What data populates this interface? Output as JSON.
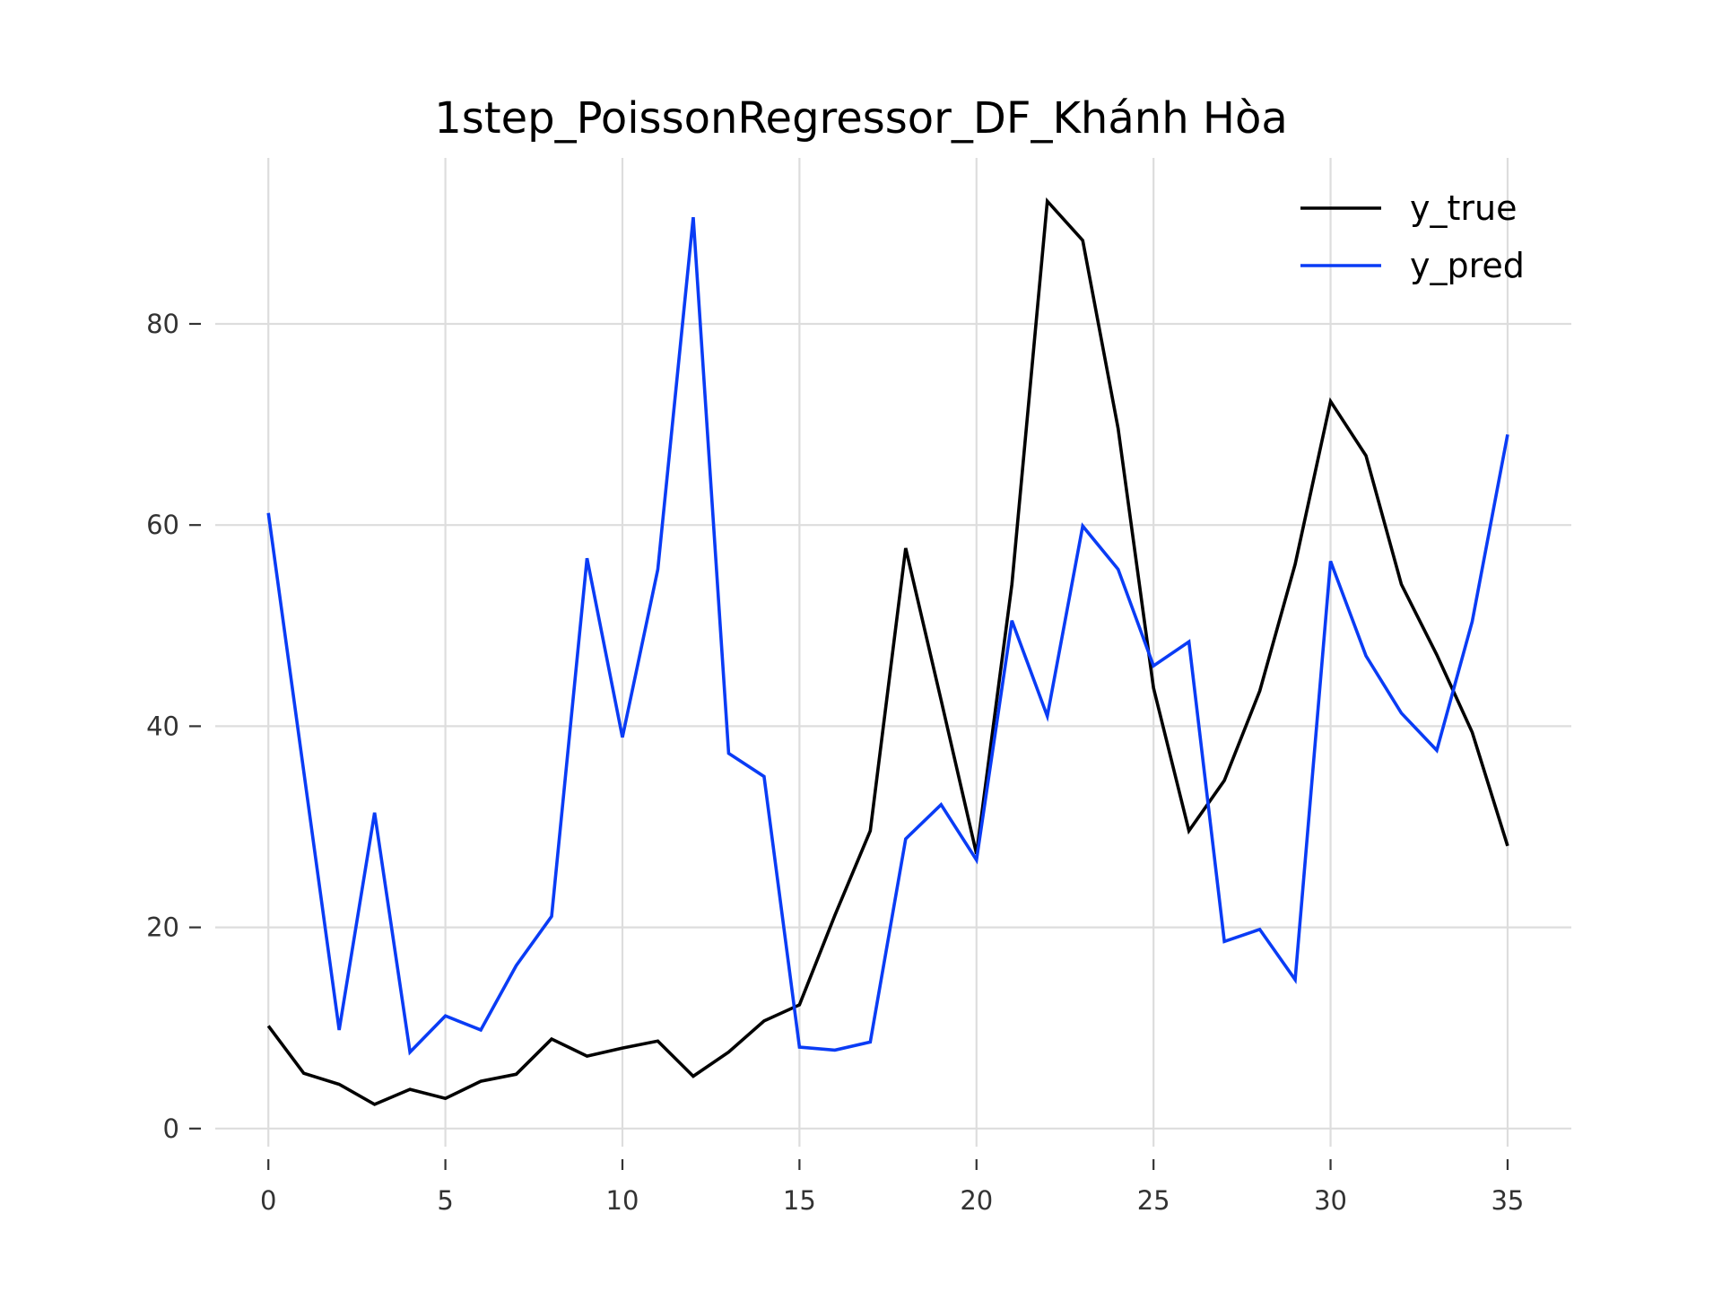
{
  "chart_data": {
    "type": "line",
    "title": "1step_PoissonRegressor_DF_Khánh Hòa",
    "xlabel": "",
    "ylabel": "",
    "x": [
      0,
      1,
      2,
      3,
      4,
      5,
      6,
      7,
      8,
      9,
      10,
      11,
      12,
      13,
      14,
      15,
      16,
      17,
      18,
      19,
      20,
      21,
      22,
      23,
      24,
      25,
      26,
      27,
      28,
      29,
      30,
      31,
      32,
      33,
      34,
      35
    ],
    "xlim": [
      -1.5,
      36.8
    ],
    "ylim": [
      -1.8,
      96.5
    ],
    "xticks": [
      0,
      5,
      10,
      15,
      20,
      25,
      30,
      35
    ],
    "yticks": [
      0,
      20,
      40,
      60,
      80
    ],
    "grid": true,
    "legend_position": "top-right",
    "series": [
      {
        "name": "y_true",
        "color": "#000000",
        "values": [
          10.2,
          5.5,
          4.4,
          2.4,
          3.9,
          3.0,
          4.7,
          5.4,
          8.9,
          7.2,
          8.0,
          8.7,
          5.2,
          7.6,
          10.7,
          12.3,
          21.2,
          29.6,
          57.7,
          42.6,
          27.3,
          54.1,
          92.2,
          88.3,
          69.6,
          43.8,
          29.6,
          34.6,
          43.5,
          56.1,
          72.3,
          66.9,
          54.1,
          47.1,
          39.4,
          28.1
        ]
      },
      {
        "name": "y_pred",
        "color": "#0a3cf5",
        "values": [
          61.2,
          35.5,
          9.8,
          31.4,
          7.6,
          11.2,
          9.8,
          16.2,
          21.1,
          56.7,
          38.9,
          55.6,
          90.6,
          37.3,
          35.0,
          8.1,
          7.8,
          8.6,
          28.8,
          32.2,
          26.7,
          50.5,
          41.0,
          59.9,
          55.6,
          46.0,
          48.4,
          18.6,
          19.8,
          14.8,
          56.4,
          47.0,
          41.3,
          37.6,
          50.4,
          69.0
        ]
      }
    ]
  }
}
